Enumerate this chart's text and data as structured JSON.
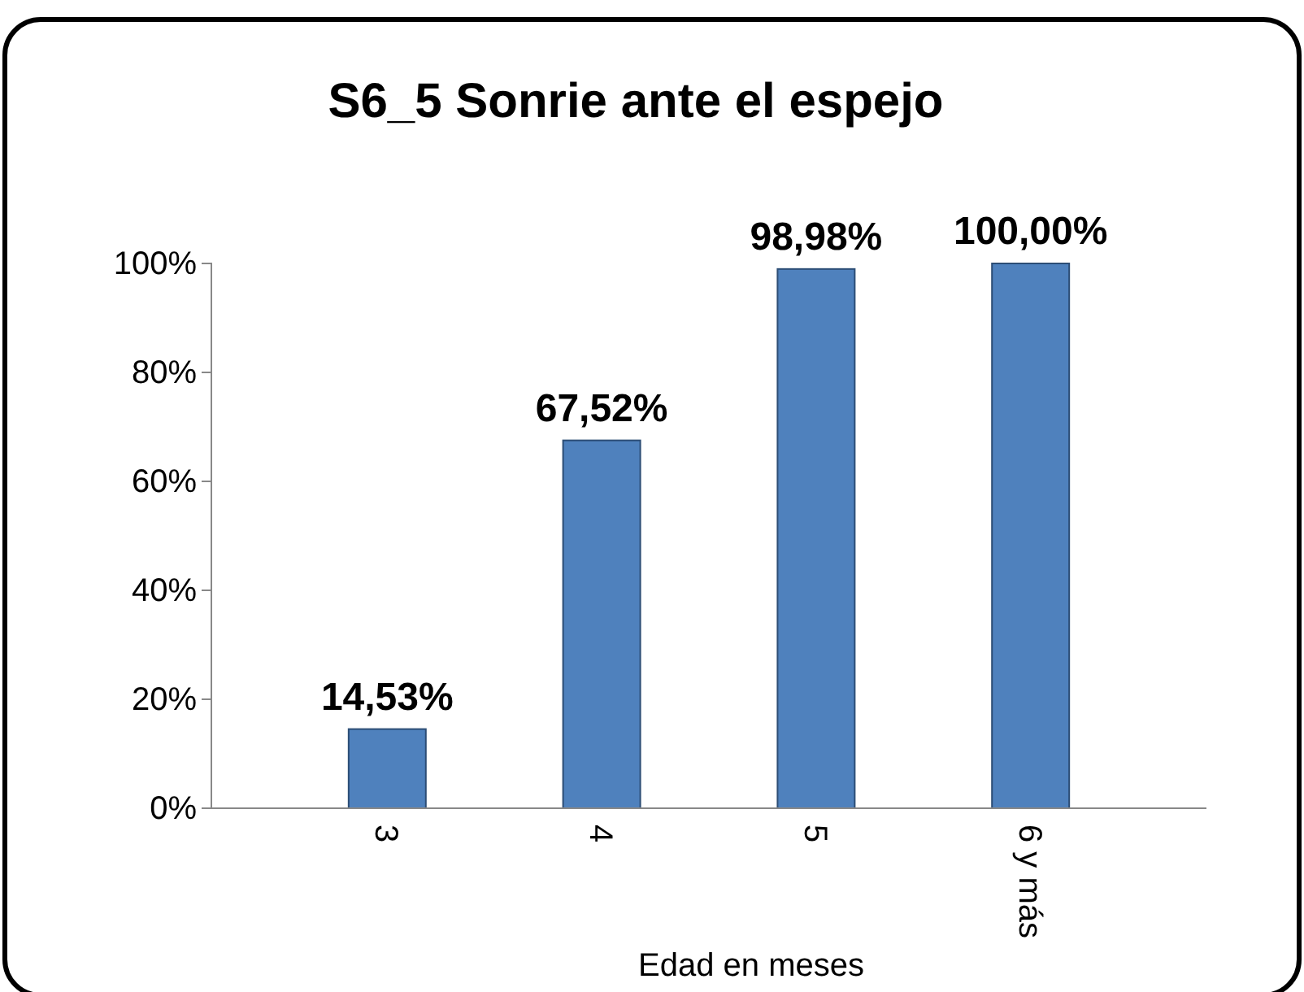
{
  "chart_data": {
    "type": "bar",
    "title": "S6_5 Sonrie ante el espejo",
    "xlabel": "Edad en meses",
    "categories": [
      "3",
      "4",
      "5",
      "6 y más"
    ],
    "values": [
      14.53,
      67.52,
      98.98,
      100
    ],
    "value_labels": [
      "14,53%",
      "67,52%",
      "98,98%",
      "100,00%"
    ],
    "color": "#4f81bd",
    "ylim": [
      0,
      100
    ],
    "yticks": [
      {
        "value": 0,
        "label": "0%"
      },
      {
        "value": 20,
        "label": "20%"
      },
      {
        "value": 40,
        "label": "40%"
      },
      {
        "value": 60,
        "label": "60%"
      },
      {
        "value": 80,
        "label": "80%"
      },
      {
        "value": 100,
        "label": "100%"
      }
    ],
    "grid": false
  }
}
